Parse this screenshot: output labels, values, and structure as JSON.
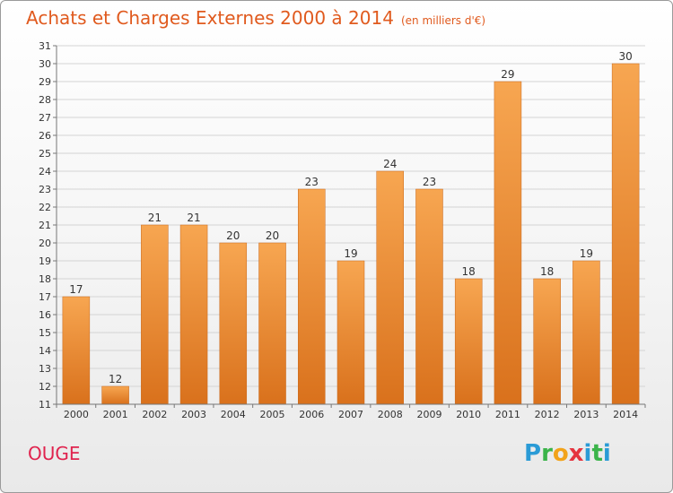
{
  "title": "Achats et Charges Externes 2000 à 2014",
  "unit": "(en milliers d'€)",
  "commune": "OUGE",
  "logo": {
    "text": "Proxiti"
  },
  "colors": {
    "bar_top": "#f7a651",
    "bar_bottom": "#d9711c",
    "title": "#e05a1e",
    "commune": "#e0234e"
  },
  "chart_data": {
    "type": "bar",
    "title": "Achats et Charges Externes 2000 à 2014",
    "subtitle": "(en milliers d'€)",
    "categories": [
      "2000",
      "2001",
      "2002",
      "2003",
      "2004",
      "2005",
      "2006",
      "2007",
      "2008",
      "2009",
      "2010",
      "2011",
      "2012",
      "2013",
      "2014"
    ],
    "values": [
      17,
      12,
      21,
      21,
      20,
      20,
      23,
      19,
      24,
      23,
      18,
      29,
      18,
      19,
      30
    ],
    "xlabel": "",
    "ylabel": "",
    "ylim": [
      11,
      31
    ],
    "yticks": [
      11,
      12,
      13,
      14,
      15,
      16,
      17,
      18,
      19,
      20,
      21,
      22,
      23,
      24,
      25,
      26,
      27,
      28,
      29,
      30,
      31
    ],
    "grid": true,
    "legend": "none"
  }
}
